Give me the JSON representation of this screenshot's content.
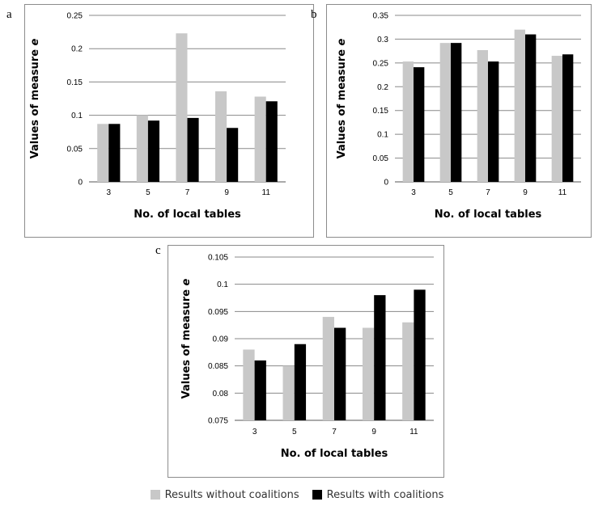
{
  "legend": {
    "without": "Results without coalitions",
    "with": "Results with coalitions"
  },
  "colors": {
    "without": "#c8c8c8",
    "with": "#000000",
    "grid": "#888888"
  },
  "chart_data": [
    {
      "type": "bar",
      "panel_label": "a",
      "xlabel": "No. of local tables",
      "ylabel": "Values of measure e",
      "categories": [
        "3",
        "5",
        "7",
        "9",
        "11"
      ],
      "ylim": [
        0,
        0.25
      ],
      "yticks": [
        "0",
        "0.05",
        "0.1",
        "0.15",
        "0.2",
        "0.25"
      ],
      "ytick_values": [
        0,
        0.05,
        0.1,
        0.15,
        0.2,
        0.25
      ],
      "grid": true,
      "series": [
        {
          "name": "Results without coalitions",
          "values": [
            0.087,
            0.1,
            0.223,
            0.136,
            0.128
          ]
        },
        {
          "name": "Results with coalitions",
          "values": [
            0.087,
            0.092,
            0.096,
            0.081,
            0.121
          ]
        }
      ]
    },
    {
      "type": "bar",
      "panel_label": "b",
      "xlabel": "No. of local tables",
      "ylabel": "Values of measure e",
      "categories": [
        "3",
        "5",
        "7",
        "9",
        "11"
      ],
      "ylim": [
        0,
        0.35
      ],
      "yticks": [
        "0",
        "0.05",
        "0.1",
        "0.15",
        "0.2",
        "0.25",
        "0.3",
        "0.35"
      ],
      "ytick_values": [
        0,
        0.05,
        0.1,
        0.15,
        0.2,
        0.25,
        0.3,
        0.35
      ],
      "grid": true,
      "series": [
        {
          "name": "Results without coalitions",
          "values": [
            0.253,
            0.292,
            0.277,
            0.32,
            0.265
          ]
        },
        {
          "name": "Results with coalitions",
          "values": [
            0.241,
            0.292,
            0.253,
            0.31,
            0.268
          ]
        }
      ]
    },
    {
      "type": "bar",
      "panel_label": "c",
      "xlabel": "No. of local tables",
      "ylabel": "Values of measure e",
      "categories": [
        "3",
        "5",
        "7",
        "9",
        "11"
      ],
      "ylim": [
        0.075,
        0.105
      ],
      "yticks": [
        "0.075",
        "0.08",
        "0.085",
        "0.09",
        "0.095",
        "0.1",
        "0.105"
      ],
      "ytick_values": [
        0.075,
        0.08,
        0.085,
        0.09,
        0.095,
        0.1,
        0.105
      ],
      "grid": true,
      "series": [
        {
          "name": "Results without coalitions",
          "values": [
            0.088,
            0.085,
            0.094,
            0.092,
            0.093
          ]
        },
        {
          "name": "Results with coalitions",
          "values": [
            0.086,
            0.089,
            0.092,
            0.098,
            0.099
          ]
        }
      ]
    }
  ]
}
